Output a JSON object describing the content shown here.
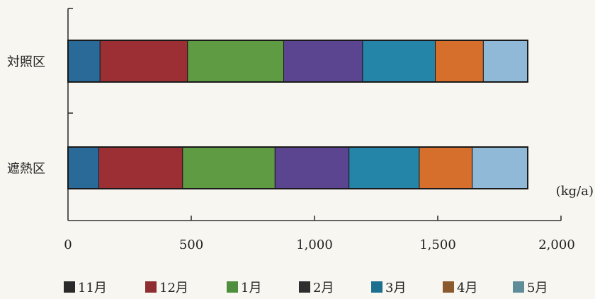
{
  "chart_data": {
    "type": "bar",
    "orientation": "horizontal",
    "stacked": true,
    "categories": [
      "対照区",
      "遮熱区"
    ],
    "unit_label": "(kg/a)",
    "xlim": [
      0,
      2000
    ],
    "x_ticks": [
      {
        "value": 0,
        "label": "0"
      },
      {
        "value": 500,
        "label": "500"
      },
      {
        "value": 1000,
        "label": "1,000"
      },
      {
        "value": 1500,
        "label": "1,500"
      },
      {
        "value": 2000,
        "label": "2,000"
      }
    ],
    "series": [
      {
        "name": "11月",
        "color": "#2a6a98",
        "legend_color": "#2a2a2a",
        "values": [
          130,
          125
        ]
      },
      {
        "name": "12月",
        "color": "#9b2f33",
        "legend_color": "#8e2e30",
        "values": [
          355,
          340
        ]
      },
      {
        "name": "1月",
        "color": "#5f9b43",
        "legend_color": "#4e8e3c",
        "values": [
          390,
          375
        ]
      },
      {
        "name": "2月",
        "color": "#5c4590",
        "legend_color": "#2e2e2e",
        "values": [
          320,
          300
        ]
      },
      {
        "name": "3月",
        "color": "#2585a8",
        "legend_color": "#1d6f8f",
        "values": [
          295,
          285
        ]
      },
      {
        "name": "4月",
        "color": "#d66e2c",
        "legend_color": "#8a5a2e",
        "values": [
          195,
          215
        ]
      },
      {
        "name": "5月",
        "color": "#8fb9d6",
        "legend_color": "#5f8c99",
        "values": [
          180,
          225
        ]
      }
    ],
    "grid": false,
    "legend_position": "bottom"
  }
}
